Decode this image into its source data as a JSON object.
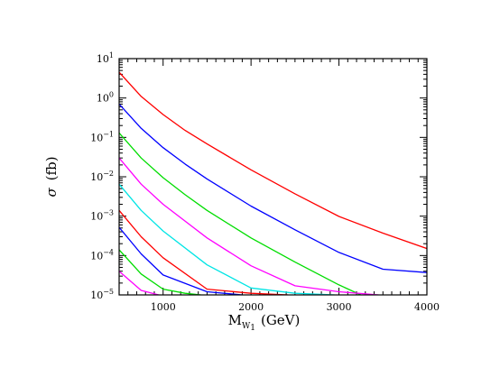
{
  "chart_data": {
    "type": "line",
    "title": "",
    "xlabel": {
      "main": "M",
      "sub": "W",
      "subsub": "1",
      "unit": "(GeV)"
    },
    "ylabel": {
      "symbol": "σ",
      "unit": "(fb)"
    },
    "xlim": [
      500,
      4000
    ],
    "ylim": [
      1e-05,
      10
    ],
    "yscale": "log",
    "x_ticks": [
      1000,
      2000,
      3000,
      4000
    ],
    "x_tick_labels": [
      "1000",
      "2000",
      "3000",
      "4000"
    ],
    "y_ticks": [
      {
        "value": 10,
        "base": "10",
        "exp": "1"
      },
      {
        "value": 1,
        "base": "10",
        "exp": "0"
      },
      {
        "value": 0.1,
        "base": "10",
        "exp": "−1"
      },
      {
        "value": 0.01,
        "base": "10",
        "exp": "−2"
      },
      {
        "value": 0.001,
        "base": "10",
        "exp": "−3"
      },
      {
        "value": 0.0001,
        "base": "10",
        "exp": "−4"
      },
      {
        "value": 1e-05,
        "base": "10",
        "exp": "−5"
      }
    ],
    "grid": false,
    "legend": "none",
    "series": [
      {
        "color": "#ff0000",
        "x": [
          500,
          750,
          1000,
          1250,
          1500,
          2000,
          2500,
          3000,
          3500,
          4000
        ],
        "y": [
          4.5,
          1.1,
          0.38,
          0.15,
          0.068,
          0.015,
          0.0037,
          0.00098,
          0.00037,
          0.00015
        ]
      },
      {
        "color": "#0000ff",
        "x": [
          500,
          750,
          1000,
          1250,
          1500,
          2000,
          2500,
          3000,
          3500,
          4000
        ],
        "y": [
          0.7,
          0.17,
          0.055,
          0.021,
          0.0088,
          0.0018,
          0.00045,
          0.00012,
          4.5e-05,
          3.7e-05
        ]
      },
      {
        "color": "#00dd00",
        "x": [
          500,
          750,
          1000,
          1250,
          1500,
          2000,
          2500,
          3000,
          3500,
          4000
        ],
        "y": [
          0.13,
          0.03,
          0.0095,
          0.0035,
          0.0014,
          0.00028,
          6.8e-05,
          1.8e-05,
          5.5e-06,
          1e-05
        ]
      },
      {
        "color": "#ff00ff",
        "x": [
          500,
          750,
          1000,
          1500,
          2000,
          2500,
          3000,
          3450
        ],
        "y": [
          0.03,
          0.0065,
          0.002,
          0.00028,
          5.5e-05,
          1.7e-05,
          1.2e-05,
          1e-05
        ]
      },
      {
        "color": "#00e5e5",
        "x": [
          500,
          750,
          1000,
          1500,
          2000,
          2500,
          2950
        ],
        "y": [
          0.0065,
          0.0014,
          0.00042,
          5.8e-05,
          1.5e-05,
          1.1e-05,
          1e-05
        ]
      },
      {
        "color": "#ff0000",
        "x": [
          500,
          750,
          1000,
          1500,
          2000,
          2420
        ],
        "y": [
          0.0014,
          0.0003,
          8.8e-05,
          1.4e-05,
          1.1e-05,
          1e-05
        ]
      },
      {
        "color": "#0000ff",
        "x": [
          500,
          750,
          1000,
          1500,
          1900
        ],
        "y": [
          0.00052,
          0.00011,
          3.2e-05,
          1.2e-05,
          1e-05
        ]
      },
      {
        "color": "#00dd00",
        "x": [
          500,
          750,
          1000,
          1250,
          1430
        ],
        "y": [
          0.00014,
          3.4e-05,
          1.4e-05,
          1.1e-05,
          1e-05
        ]
      },
      {
        "color": "#ff00ff",
        "x": [
          500,
          750,
          950
        ],
        "y": [
          4e-05,
          1.3e-05,
          1e-05
        ]
      }
    ]
  }
}
